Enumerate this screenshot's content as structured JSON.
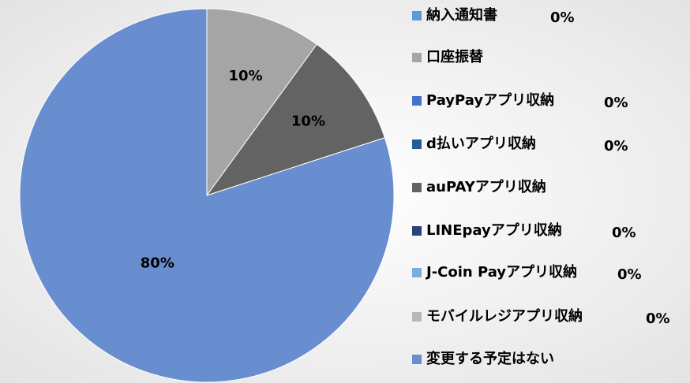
{
  "chart_data": {
    "type": "pie",
    "categories": [
      "納入通知書",
      "口座振替",
      "PayPayアプリ収納",
      "d払いアプリ収納",
      "auPAYアプリ収納",
      "LINEpayアプリ収納",
      "J-Coin Payアプリ収納",
      "モバイルレジアプリ収納",
      "変更する予定はない"
    ],
    "values": [
      0,
      10,
      0,
      0,
      10,
      0,
      0,
      0,
      80
    ],
    "value_labels": [
      "0%",
      "10%",
      "0%",
      "0%",
      "10%",
      "0%",
      "0%",
      "0%",
      "80%"
    ],
    "colors": [
      "#5b9bd5",
      "#a5a5a5",
      "#4472c4",
      "#255e91",
      "#636363",
      "#264478",
      "#7cafdd",
      "#b7b7b7",
      "#698ed0"
    ],
    "legend": "right"
  }
}
